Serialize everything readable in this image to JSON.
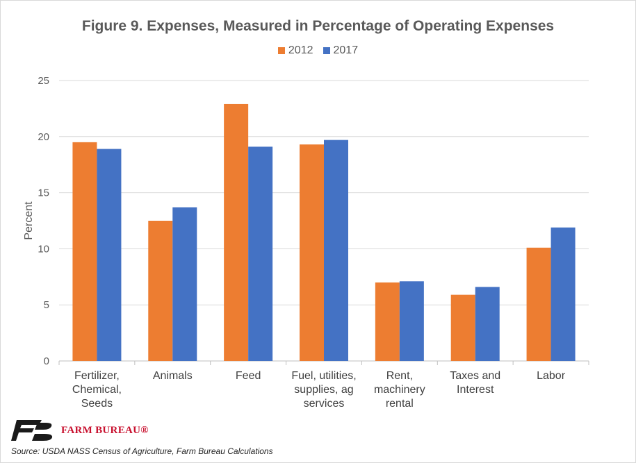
{
  "chart_data": {
    "type": "bar",
    "title": "Figure 9. Expenses, Measured in Percentage of Operating Expenses",
    "ylabel": "Percent",
    "xlabel": "",
    "ylim": [
      0,
      25
    ],
    "yticks": [
      "0",
      "5",
      "10",
      "15",
      "20",
      "25"
    ],
    "grid": true,
    "legend_position": "top",
    "categories": [
      [
        "Fertilizer,",
        "Chemical,",
        "Seeds"
      ],
      [
        "Animals"
      ],
      [
        "Feed"
      ],
      [
        "Fuel, utilities,",
        "supplies, ag",
        "services"
      ],
      [
        "Rent,",
        "machinery",
        "rental"
      ],
      [
        "Taxes and",
        "Interest"
      ],
      [
        "Labor"
      ]
    ],
    "series": [
      {
        "name": "2012",
        "color": "#ed7d31",
        "values": [
          19.5,
          12.5,
          22.9,
          19.3,
          7.0,
          5.9,
          10.1
        ]
      },
      {
        "name": "2017",
        "color": "#4472c4",
        "values": [
          18.9,
          13.7,
          19.1,
          19.7,
          7.1,
          6.6,
          11.9
        ]
      }
    ]
  },
  "footer": {
    "logo_text": "FARM BUREAU®",
    "source": "Source: USDA NASS Census of Agriculture, Farm Bureau Calculations"
  }
}
